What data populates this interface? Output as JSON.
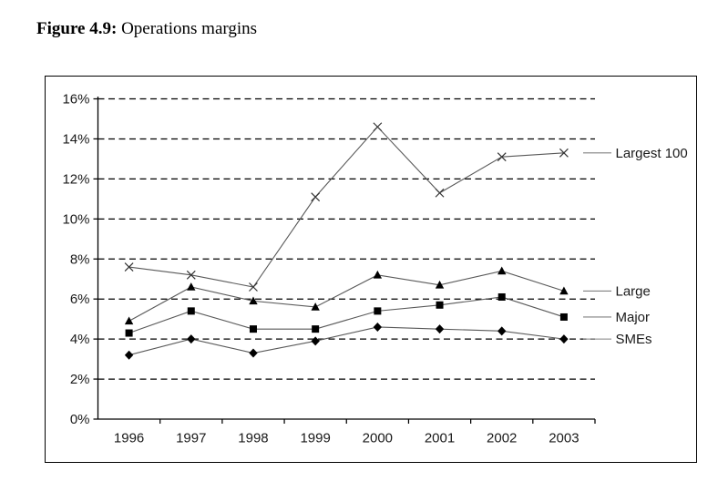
{
  "figure": {
    "label": "Figure 4.9:",
    "title": " Operations margins"
  },
  "chart_data": {
    "type": "line",
    "title": "Figure 4.9: Operations margins",
    "categories": [
      "1996",
      "1997",
      "1998",
      "1999",
      "2000",
      "2001",
      "2002",
      "2003"
    ],
    "series": [
      {
        "name": "Largest 100",
        "marker": "x",
        "values": [
          7.6,
          7.2,
          6.6,
          11.1,
          14.6,
          11.3,
          13.1,
          13.3
        ]
      },
      {
        "name": "Large",
        "marker": "triangle",
        "values": [
          4.9,
          6.6,
          5.9,
          5.6,
          7.2,
          6.7,
          7.4,
          6.4
        ]
      },
      {
        "name": "Major",
        "marker": "square",
        "values": [
          4.3,
          5.4,
          4.5,
          4.5,
          5.4,
          5.7,
          6.1,
          5.1
        ]
      },
      {
        "name": "SMEs",
        "marker": "diamond",
        "values": [
          3.2,
          4.0,
          3.3,
          3.9,
          4.6,
          4.5,
          4.4,
          4.0
        ]
      }
    ],
    "xlabel": "",
    "ylabel": "",
    "ylim": [
      0,
      16
    ],
    "ytick_step": 2,
    "ytick_labels": [
      "0%",
      "2%",
      "4%",
      "6%",
      "8%",
      "10%",
      "12%",
      "14%",
      "16%"
    ],
    "grid": "horizontal-dashed",
    "legend_position": "right-inline-labels",
    "colors": {
      "line": "#595959",
      "marker": "#000000",
      "grid": "#000000",
      "axis": "#000000",
      "leader": "#808080",
      "text": "#1a1a1a"
    }
  }
}
